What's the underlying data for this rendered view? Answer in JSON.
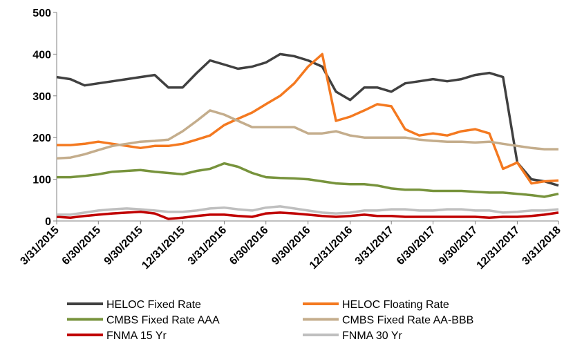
{
  "chart_data": {
    "type": "line",
    "x": [
      "3/31/2015",
      "4/30/2015",
      "5/31/2015",
      "6/30/2015",
      "7/31/2015",
      "8/31/2015",
      "9/30/2015",
      "10/31/2015",
      "11/30/2015",
      "12/31/2015",
      "1/31/2016",
      "2/29/2016",
      "3/31/2016",
      "4/30/2016",
      "5/31/2016",
      "6/30/2016",
      "7/31/2016",
      "8/31/2016",
      "9/30/2016",
      "10/31/2016",
      "11/30/2016",
      "12/31/2016",
      "1/31/2017",
      "2/28/2017",
      "3/31/2017",
      "4/30/2017",
      "5/31/2017",
      "6/30/2017",
      "7/31/2017",
      "8/31/2017",
      "9/30/2017",
      "10/31/2017",
      "11/30/2017",
      "12/31/2017",
      "1/31/2018",
      "2/28/2018",
      "3/31/2018"
    ],
    "series": [
      {
        "name": "HELOC Fixed Rate",
        "color": "#404040",
        "values": [
          345,
          340,
          325,
          330,
          335,
          340,
          345,
          350,
          320,
          320,
          355,
          385,
          375,
          365,
          370,
          380,
          400,
          395,
          385,
          370,
          310,
          290,
          320,
          320,
          310,
          330,
          335,
          340,
          335,
          340,
          350,
          355,
          345,
          140,
          100,
          95,
          85
        ]
      },
      {
        "name": "HELOC Floating Rate",
        "color": "#f47920",
        "values": [
          182,
          182,
          185,
          190,
          185,
          180,
          175,
          180,
          180,
          185,
          195,
          205,
          230,
          245,
          260,
          280,
          300,
          330,
          370,
          400,
          240,
          250,
          265,
          280,
          275,
          220,
          205,
          210,
          205,
          215,
          220,
          210,
          125,
          140,
          90,
          95,
          97
        ]
      },
      {
        "name": "CMBS Fixed Rate AAA",
        "color": "#77933c",
        "values": [
          105,
          105,
          108,
          112,
          118,
          120,
          122,
          118,
          115,
          112,
          120,
          125,
          138,
          130,
          115,
          105,
          103,
          102,
          100,
          95,
          90,
          88,
          88,
          85,
          78,
          75,
          75,
          72,
          72,
          72,
          70,
          68,
          68,
          65,
          62,
          58,
          65
        ]
      },
      {
        "name": "CMBS Fixed Rate AA-BBB",
        "color": "#c4ad8c",
        "values": [
          150,
          152,
          160,
          170,
          180,
          185,
          190,
          192,
          195,
          215,
          240,
          265,
          255,
          240,
          225,
          225,
          225,
          225,
          210,
          210,
          215,
          205,
          200,
          200,
          200,
          200,
          195,
          192,
          190,
          190,
          188,
          190,
          185,
          180,
          175,
          172,
          172
        ]
      },
      {
        "name": "FNMA 15 Yr",
        "color": "#c00000",
        "values": [
          10,
          8,
          12,
          15,
          18,
          20,
          22,
          18,
          5,
          8,
          12,
          15,
          15,
          12,
          10,
          18,
          20,
          18,
          15,
          12,
          10,
          12,
          15,
          12,
          12,
          10,
          10,
          10,
          10,
          10,
          10,
          8,
          10,
          10,
          12,
          15,
          20
        ]
      },
      {
        "name": "FNMA 30 Yr",
        "color": "#bfbfbf",
        "values": [
          15,
          15,
          20,
          25,
          28,
          30,
          28,
          25,
          22,
          22,
          25,
          30,
          32,
          28,
          25,
          32,
          35,
          30,
          25,
          20,
          18,
          20,
          25,
          25,
          28,
          28,
          25,
          25,
          28,
          28,
          25,
          25,
          20,
          22,
          25,
          25,
          28
        ]
      }
    ],
    "xlim": [
      "3/31/2015",
      "3/31/2018"
    ],
    "xticks": [
      "3/31/2015",
      "6/30/2015",
      "9/30/2015",
      "12/31/2015",
      "3/31/2016",
      "6/30/2016",
      "9/30/2016",
      "12/31/2016",
      "3/31/2017",
      "6/30/2017",
      "9/30/2017",
      "12/31/2017",
      "3/31/2018"
    ],
    "ylim": [
      0,
      500
    ],
    "yticks": [
      0,
      100,
      200,
      300,
      400,
      500
    ],
    "grid": false
  }
}
